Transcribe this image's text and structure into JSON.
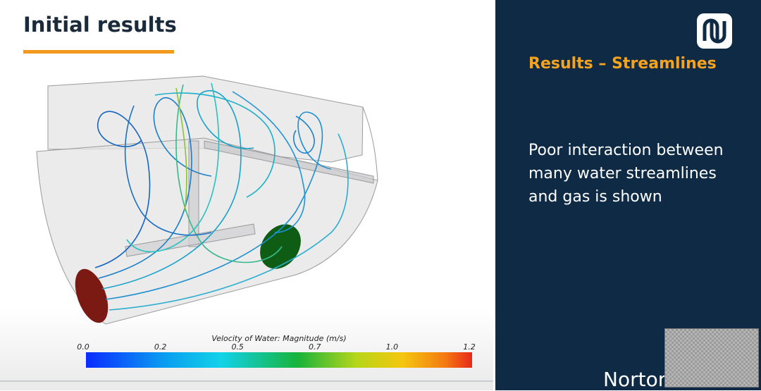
{
  "slide": {
    "title": "Initial results",
    "colorbar": {
      "title": "Velocity of Water: Magnitude (m/s)",
      "tick_labels": [
        "0.0",
        "0.2",
        "0.5",
        "0.7",
        "1.0",
        "1.2"
      ]
    }
  },
  "panel": {
    "heading": "Results – Streamlines",
    "body_lines": [
      "Poor interaction between",
      "many water streamlines",
      "and gas is shown"
    ],
    "footer": "Norton Straw"
  }
}
